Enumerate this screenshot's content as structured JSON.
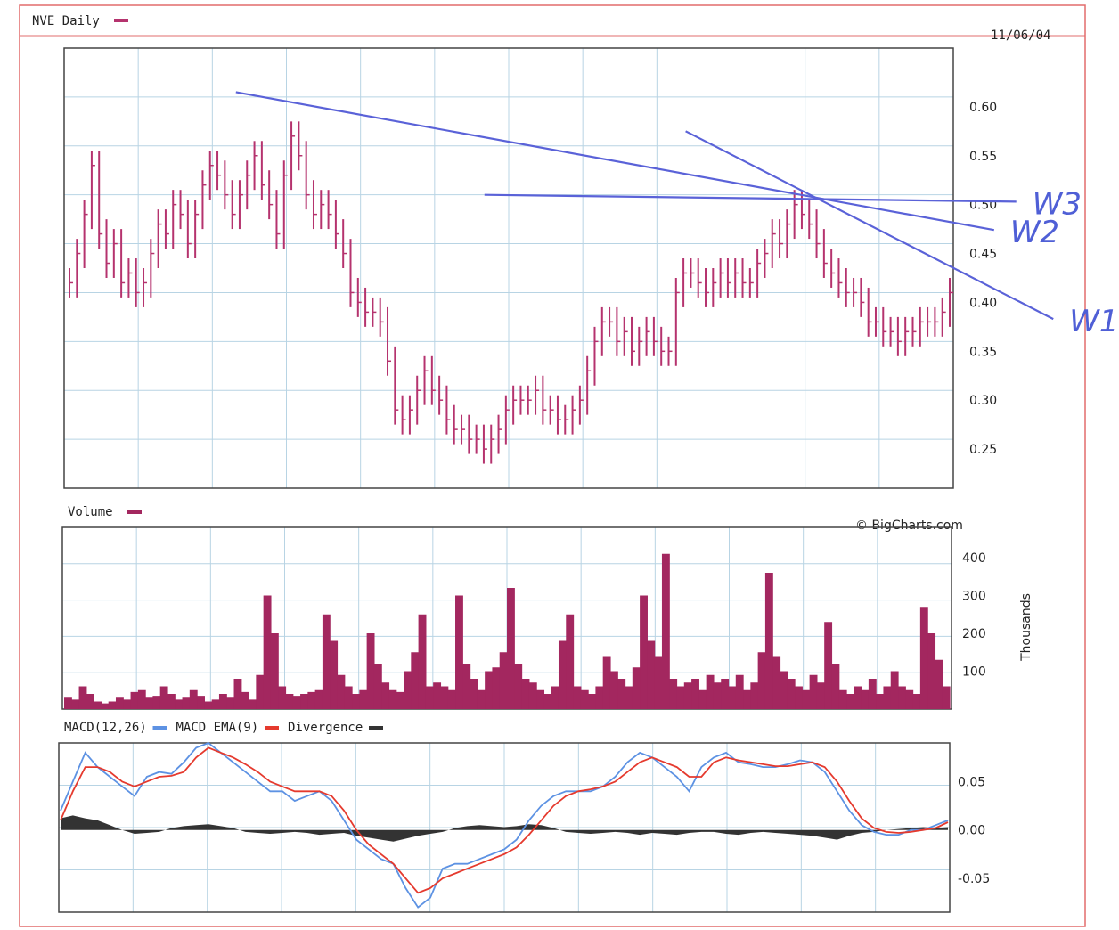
{
  "header": {
    "ticker_title": "NVE Daily",
    "date": "11/06/04"
  },
  "colors": {
    "price": "#b5336e",
    "volume": "#a3275f",
    "macd": "#5d92e3",
    "ema": "#e53a2e",
    "divergence": "#333333",
    "grid": "#b8d4e4",
    "trendline": "#5a62d8",
    "frame": "#e26c6c"
  },
  "chart_data": [
    {
      "type": "line",
      "panel": "price",
      "title": "NVE Daily",
      "ylim": [
        0.21,
        0.66
      ],
      "y_ticks": [
        "0.60",
        "0.55",
        "0.50",
        "0.45",
        "0.40",
        "0.35",
        "0.30",
        "0.25"
      ],
      "grid": true,
      "series": [
        {
          "name": "NVE Daily",
          "close": [
            0.42,
            0.45,
            0.49,
            0.54,
            0.47,
            0.44,
            0.46,
            0.42,
            0.43,
            0.41,
            0.42,
            0.45,
            0.48,
            0.47,
            0.5,
            0.49,
            0.46,
            0.49,
            0.52,
            0.54,
            0.53,
            0.51,
            0.49,
            0.51,
            0.53,
            0.55,
            0.52,
            0.5,
            0.47,
            0.53,
            0.57,
            0.55,
            0.51,
            0.49,
            0.5,
            0.49,
            0.47,
            0.45,
            0.41,
            0.4,
            0.39,
            0.39,
            0.38,
            0.34,
            0.29,
            0.28,
            0.29,
            0.31,
            0.33,
            0.31,
            0.3,
            0.28,
            0.27,
            0.27,
            0.26,
            0.26,
            0.25,
            0.26,
            0.27,
            0.29,
            0.3,
            0.3,
            0.3,
            0.31,
            0.29,
            0.29,
            0.28,
            0.28,
            0.29,
            0.3,
            0.33,
            0.36,
            0.38,
            0.38,
            0.36,
            0.37,
            0.35,
            0.36,
            0.37,
            0.36,
            0.35,
            0.35,
            0.41,
            0.43,
            0.43,
            0.42,
            0.41,
            0.42,
            0.43,
            0.42,
            0.43,
            0.42,
            0.42,
            0.44,
            0.45,
            0.47,
            0.46,
            0.48,
            0.5,
            0.49,
            0.48,
            0.46,
            0.44,
            0.43,
            0.42,
            0.41,
            0.41,
            0.4,
            0.38,
            0.38,
            0.37,
            0.37,
            0.36,
            0.37,
            0.37,
            0.38,
            0.38,
            0.38,
            0.39,
            0.41
          ]
        }
      ]
    },
    {
      "type": "bar",
      "panel": "volume",
      "title": "Volume",
      "ylabel": "Thousands",
      "ylim": [
        0,
        480
      ],
      "y_ticks": [
        "400",
        "300",
        "200",
        "100"
      ],
      "grid": true,
      "source_note": "© BigCharts.com",
      "series": [
        {
          "name": "Volume",
          "values": [
            30,
            25,
            60,
            40,
            20,
            15,
            20,
            30,
            25,
            45,
            50,
            30,
            35,
            60,
            40,
            25,
            30,
            50,
            35,
            20,
            25,
            40,
            30,
            80,
            45,
            25,
            90,
            300,
            200,
            60,
            40,
            35,
            40,
            45,
            50,
            250,
            180,
            90,
            60,
            40,
            50,
            200,
            120,
            70,
            50,
            45,
            100,
            150,
            250,
            60,
            70,
            60,
            50,
            300,
            120,
            80,
            50,
            100,
            110,
            150,
            320,
            120,
            80,
            70,
            50,
            40,
            60,
            180,
            250,
            60,
            50,
            40,
            60,
            140,
            100,
            80,
            60,
            110,
            300,
            180,
            140,
            410,
            80,
            60,
            70,
            80,
            50,
            90,
            70,
            80,
            60,
            90,
            50,
            70,
            150,
            360,
            140,
            100,
            80,
            60,
            50,
            90,
            70,
            230,
            120,
            50,
            40,
            60,
            50,
            80,
            40,
            60,
            100,
            60,
            50,
            40,
            270,
            200,
            130,
            60
          ]
        }
      ]
    },
    {
      "type": "line",
      "panel": "macd",
      "title": "MACD(12,26)",
      "ylim": [
        -0.085,
        0.09
      ],
      "y_ticks": [
        "0.05",
        "0.00",
        "-0.05"
      ],
      "grid": true,
      "series": [
        {
          "name": "MACD(12,26)",
          "values": [
            0.02,
            0.05,
            0.08,
            0.065,
            0.055,
            0.045,
            0.035,
            0.055,
            0.06,
            0.058,
            0.07,
            0.085,
            0.09,
            0.08,
            0.07,
            0.06,
            0.05,
            0.04,
            0.04,
            0.03,
            0.035,
            0.04,
            0.03,
            0.01,
            -0.01,
            -0.02,
            -0.03,
            -0.035,
            -0.06,
            -0.08,
            -0.07,
            -0.04,
            -0.035,
            -0.035,
            -0.03,
            -0.025,
            -0.02,
            -0.01,
            0.01,
            0.025,
            0.035,
            0.04,
            0.04,
            0.04,
            0.045,
            0.055,
            0.07,
            0.08,
            0.075,
            0.065,
            0.055,
            0.04,
            0.065,
            0.075,
            0.08,
            0.07,
            0.068,
            0.065,
            0.065,
            0.068,
            0.072,
            0.07,
            0.06,
            0.04,
            0.02,
            0.005,
            -0.002,
            -0.005,
            -0.005,
            0.0,
            0.0,
            0.005,
            0.01
          ]
        },
        {
          "name": "MACD EMA(9)",
          "values": [
            0.01,
            0.04,
            0.065,
            0.065,
            0.06,
            0.05,
            0.045,
            0.05,
            0.055,
            0.056,
            0.06,
            0.075,
            0.085,
            0.08,
            0.075,
            0.068,
            0.06,
            0.05,
            0.045,
            0.04,
            0.04,
            0.04,
            0.035,
            0.02,
            0.0,
            -0.015,
            -0.025,
            -0.035,
            -0.05,
            -0.065,
            -0.06,
            -0.05,
            -0.045,
            -0.04,
            -0.035,
            -0.03,
            -0.025,
            -0.018,
            -0.005,
            0.01,
            0.025,
            0.035,
            0.04,
            0.042,
            0.045,
            0.05,
            0.06,
            0.07,
            0.075,
            0.07,
            0.065,
            0.055,
            0.055,
            0.07,
            0.075,
            0.072,
            0.07,
            0.068,
            0.066,
            0.066,
            0.068,
            0.07,
            0.065,
            0.05,
            0.03,
            0.012,
            0.002,
            -0.002,
            -0.003,
            -0.002,
            0.0,
            0.002,
            0.008
          ]
        },
        {
          "name": "Divergence",
          "values": [
            0.012,
            0.015,
            0.012,
            0.01,
            0.005,
            0.0,
            -0.004,
            -0.003,
            -0.002,
            0.002,
            0.004,
            0.005,
            0.006,
            0.004,
            0.002,
            -0.002,
            -0.003,
            -0.004,
            -0.003,
            -0.002,
            -0.003,
            -0.005,
            -0.004,
            -0.003,
            -0.006,
            -0.008,
            -0.01,
            -0.012,
            -0.009,
            -0.006,
            -0.004,
            -0.002,
            0.002,
            0.004,
            0.005,
            0.004,
            0.003,
            0.004,
            0.006,
            0.005,
            0.002,
            -0.002,
            -0.003,
            -0.004,
            -0.003,
            -0.002,
            -0.003,
            -0.005,
            -0.003,
            -0.004,
            -0.005,
            -0.003,
            -0.002,
            -0.002,
            -0.004,
            -0.005,
            -0.003,
            -0.002,
            -0.003,
            -0.004,
            -0.005,
            -0.006,
            -0.008,
            -0.01,
            -0.006,
            -0.003,
            -0.002,
            0.0,
            0.001,
            0.002,
            0.003,
            0.002,
            0.003
          ]
        }
      ]
    }
  ],
  "trendlines": [
    {
      "name": "W3",
      "label": "W3",
      "start": [
        56.1,
        0.51
      ],
      "end": [
        128.0,
        0.503
      ]
    },
    {
      "name": "W2",
      "label": "W2",
      "start": [
        22.5,
        0.615
      ],
      "end": [
        125.0,
        0.474
      ]
    },
    {
      "name": "W1",
      "label": "W1",
      "start": [
        83.3,
        0.575
      ],
      "end": [
        133.0,
        0.383
      ]
    }
  ],
  "legends": {
    "price": [
      {
        "label": "NVE Daily",
        "color": "#b5336e"
      }
    ],
    "volume": [
      {
        "label": "Volume",
        "color": "#a3275f"
      }
    ],
    "macd": [
      {
        "label": "MACD(12,26)",
        "color": "#5d92e3"
      },
      {
        "label": "MACD EMA(9)",
        "color": "#e53a2e"
      },
      {
        "label": "Divergence",
        "color": "#333333"
      }
    ]
  }
}
